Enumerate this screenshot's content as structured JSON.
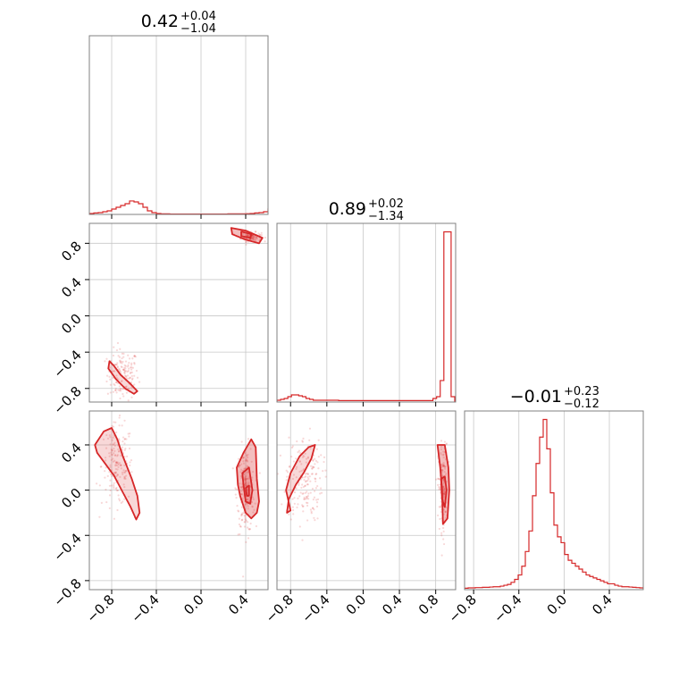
{
  "chart_data": [
    {
      "type": "histogram",
      "panel": "x0-marginal",
      "title_main": "0.42",
      "title_sup": "+0.04",
      "title_sub": "−1.04",
      "xlim": [
        -1.0,
        0.6
      ],
      "grid": true,
      "color": "#d62728",
      "bin_edges_start": -1.0,
      "bin_width": 0.04,
      "values": [
        0.5,
        0.8,
        1.0,
        1.5,
        2.0,
        3.0,
        4.0,
        5.0,
        6.0,
        7.5,
        7.0,
        6.0,
        4.0,
        2.0,
        1.0,
        0.5,
        0.3,
        0.3,
        0.2,
        0.2,
        0.2,
        0.2,
        0.2,
        0.2,
        0.2,
        0.2,
        0.2,
        0.2,
        0.2,
        0.2,
        0.2,
        0.3,
        0.3,
        0.3,
        0.3,
        0.4,
        0.5,
        0.8,
        1.0,
        1.5,
        3.0,
        14.0,
        75.0,
        95.0,
        95.0,
        30.0,
        12.0,
        3.0,
        1.0,
        0.5
      ]
    },
    {
      "type": "scatter-contour",
      "panel": "x0-vs-x1",
      "xlim": [
        -1.0,
        0.6
      ],
      "ylim": [
        -0.95,
        1.02
      ],
      "grid": true,
      "color": "#d62728",
      "yticks": [
        "−0.8",
        "−0.4",
        "0.0",
        "0.4",
        "0.8"
      ],
      "ytick_values": [
        -0.8,
        -0.4,
        0.0,
        0.4,
        0.8
      ],
      "clusters": [
        {
          "cx": -0.7,
          "cy": -0.65,
          "n": 150,
          "sx": 0.14,
          "sy": 0.28
        },
        {
          "cx": 0.45,
          "cy": 0.87,
          "n": 120,
          "sx": 0.09,
          "sy": 0.05
        }
      ],
      "contours": [
        {
          "points": [
            [
              -0.82,
              -0.5
            ],
            [
              -0.78,
              -0.55
            ],
            [
              -0.72,
              -0.65
            ],
            [
              -0.64,
              -0.74
            ],
            [
              -0.57,
              -0.83
            ],
            [
              -0.6,
              -0.86
            ],
            [
              -0.68,
              -0.8
            ],
            [
              -0.76,
              -0.7
            ],
            [
              -0.83,
              -0.58
            ]
          ]
        },
        {
          "points": [
            [
              0.27,
              0.97
            ],
            [
              0.4,
              0.94
            ],
            [
              0.55,
              0.86
            ],
            [
              0.52,
              0.8
            ],
            [
              0.4,
              0.84
            ],
            [
              0.28,
              0.9
            ]
          ]
        },
        {
          "points": [
            [
              0.36,
              0.93
            ],
            [
              0.45,
              0.9
            ],
            [
              0.44,
              0.86
            ],
            [
              0.36,
              0.88
            ]
          ]
        }
      ]
    },
    {
      "type": "histogram",
      "panel": "x1-marginal",
      "title_main": "0.89",
      "title_sup": "+0.02",
      "title_sub": "−1.34",
      "xlim": [
        -0.95,
        1.02
      ],
      "grid": true,
      "color": "#d62728",
      "bin_edges_start": -0.95,
      "bin_width": 0.04,
      "values": [
        1,
        1.5,
        2,
        3,
        4,
        4,
        3.5,
        3,
        2,
        1.5,
        1,
        1,
        1,
        1,
        1,
        1,
        1,
        0.8,
        0.8,
        0.8,
        0.8,
        0.8,
        0.8,
        0.8,
        0.8,
        0.8,
        0.8,
        0.8,
        0.8,
        0.8,
        0.8,
        0.8,
        0.8,
        0.8,
        0.8,
        0.8,
        0.8,
        0.8,
        0.8,
        0.8,
        0.8,
        0.8,
        0.8,
        2,
        3,
        12,
        95,
        95,
        3,
        0.5
      ]
    },
    {
      "type": "scatter-contour",
      "panel": "x0-vs-x2",
      "xlim": [
        -1.0,
        0.6
      ],
      "ylim": [
        -0.88,
        0.7
      ],
      "grid": true,
      "color": "#d62728",
      "xticks": [
        "−0.8",
        "−0.4",
        "0.0",
        "0.4"
      ],
      "xtick_values": [
        -0.8,
        -0.4,
        0.0,
        0.4
      ],
      "yticks": [
        "−0.8",
        "−0.4",
        "0.0",
        "0.4"
      ],
      "ytick_values": [
        -0.8,
        -0.4,
        0.0,
        0.4
      ],
      "clusters": [
        {
          "cx": -0.75,
          "cy": 0.22,
          "n": 180,
          "sx": 0.14,
          "sy": 0.36
        },
        {
          "cx": 0.4,
          "cy": 0.0,
          "n": 200,
          "sx": 0.08,
          "sy": 0.38
        }
      ],
      "contours": [
        {
          "points": [
            [
              -0.95,
              0.4
            ],
            [
              -0.87,
              0.52
            ],
            [
              -0.8,
              0.55
            ],
            [
              -0.75,
              0.45
            ],
            [
              -0.7,
              0.3
            ],
            [
              -0.62,
              0.1
            ],
            [
              -0.57,
              -0.05
            ],
            [
              -0.55,
              -0.2
            ],
            [
              -0.58,
              -0.26
            ],
            [
              -0.63,
              -0.15
            ],
            [
              -0.7,
              -0.02
            ],
            [
              -0.78,
              0.13
            ],
            [
              -0.87,
              0.25
            ],
            [
              -0.93,
              0.33
            ]
          ]
        },
        {
          "points": [
            [
              0.32,
              0.2
            ],
            [
              0.38,
              0.33
            ],
            [
              0.45,
              0.45
            ],
            [
              0.49,
              0.38
            ],
            [
              0.5,
              0.1
            ],
            [
              0.52,
              -0.1
            ],
            [
              0.5,
              -0.2
            ],
            [
              0.45,
              -0.25
            ],
            [
              0.4,
              -0.2
            ],
            [
              0.35,
              -0.05
            ],
            [
              0.33,
              0.05
            ]
          ]
        },
        {
          "points": [
            [
              0.37,
              0.15
            ],
            [
              0.43,
              0.2
            ],
            [
              0.46,
              0.0
            ],
            [
              0.44,
              -0.12
            ],
            [
              0.4,
              -0.1
            ],
            [
              0.38,
              0.05
            ]
          ]
        },
        {
          "points": [
            [
              0.4,
              0.02
            ],
            [
              0.43,
              0.04
            ],
            [
              0.43,
              -0.05
            ],
            [
              0.41,
              -0.05
            ]
          ]
        }
      ]
    },
    {
      "type": "scatter-contour",
      "panel": "x1-vs-x2",
      "xlim": [
        -0.95,
        1.02
      ],
      "ylim": [
        -0.88,
        0.7
      ],
      "grid": true,
      "color": "#d62728",
      "xticks": [
        "−0.8",
        "−0.4",
        "0.0",
        "0.4",
        "0.8"
      ],
      "xtick_values": [
        -0.8,
        -0.4,
        0.0,
        0.4,
        0.8
      ],
      "clusters": [
        {
          "cx": -0.65,
          "cy": 0.1,
          "n": 180,
          "sx": 0.2,
          "sy": 0.38
        },
        {
          "cx": 0.88,
          "cy": 0.02,
          "n": 180,
          "sx": 0.05,
          "sy": 0.38
        }
      ],
      "contours": [
        {
          "points": [
            [
              -0.85,
              0.0
            ],
            [
              -0.8,
              0.15
            ],
            [
              -0.7,
              0.3
            ],
            [
              -0.6,
              0.38
            ],
            [
              -0.53,
              0.4
            ],
            [
              -0.57,
              0.28
            ],
            [
              -0.65,
              0.16
            ],
            [
              -0.74,
              0.05
            ],
            [
              -0.82,
              -0.08
            ],
            [
              -0.84,
              -0.2
            ],
            [
              -0.8,
              -0.18
            ]
          ]
        },
        {
          "points": [
            [
              0.82,
              0.4
            ],
            [
              0.85,
              0.2
            ],
            [
              0.87,
              0.0
            ],
            [
              0.88,
              -0.3
            ],
            [
              0.93,
              -0.25
            ],
            [
              0.95,
              0.0
            ],
            [
              0.94,
              0.2
            ],
            [
              0.9,
              0.4
            ]
          ]
        },
        {
          "points": [
            [
              0.86,
              0.1
            ],
            [
              0.9,
              0.12
            ],
            [
              0.92,
              0.0
            ],
            [
              0.9,
              -0.15
            ],
            [
              0.87,
              -0.08
            ]
          ]
        }
      ]
    },
    {
      "type": "histogram",
      "panel": "x2-marginal",
      "title_main": "−0.01",
      "title_sup": "+0.23",
      "title_sub": "−0.12",
      "xlim": [
        -0.88,
        0.7
      ],
      "grid": true,
      "color": "#d62728",
      "xticks": [
        "−0.8",
        "−0.4",
        "0.0",
        "0.4"
      ],
      "xtick_values": [
        -0.8,
        -0.4,
        0.0,
        0.4
      ],
      "bin_edges_start": -0.88,
      "bin_width": 0.0316,
      "values": [
        0.5,
        0.6,
        0.6,
        0.7,
        0.7,
        0.8,
        0.8,
        0.9,
        1,
        1,
        1.2,
        1.5,
        1.8,
        2.5,
        3.5,
        5,
        8,
        13,
        20,
        32,
        43,
        52,
        58,
        48,
        33,
        22,
        18,
        16,
        12,
        10,
        9,
        8,
        7,
        6,
        5,
        4.5,
        4,
        3.5,
        3,
        2.5,
        2,
        2,
        1.5,
        1.2,
        1,
        1,
        0.9,
        0.8,
        0.7,
        0.6
      ]
    }
  ]
}
